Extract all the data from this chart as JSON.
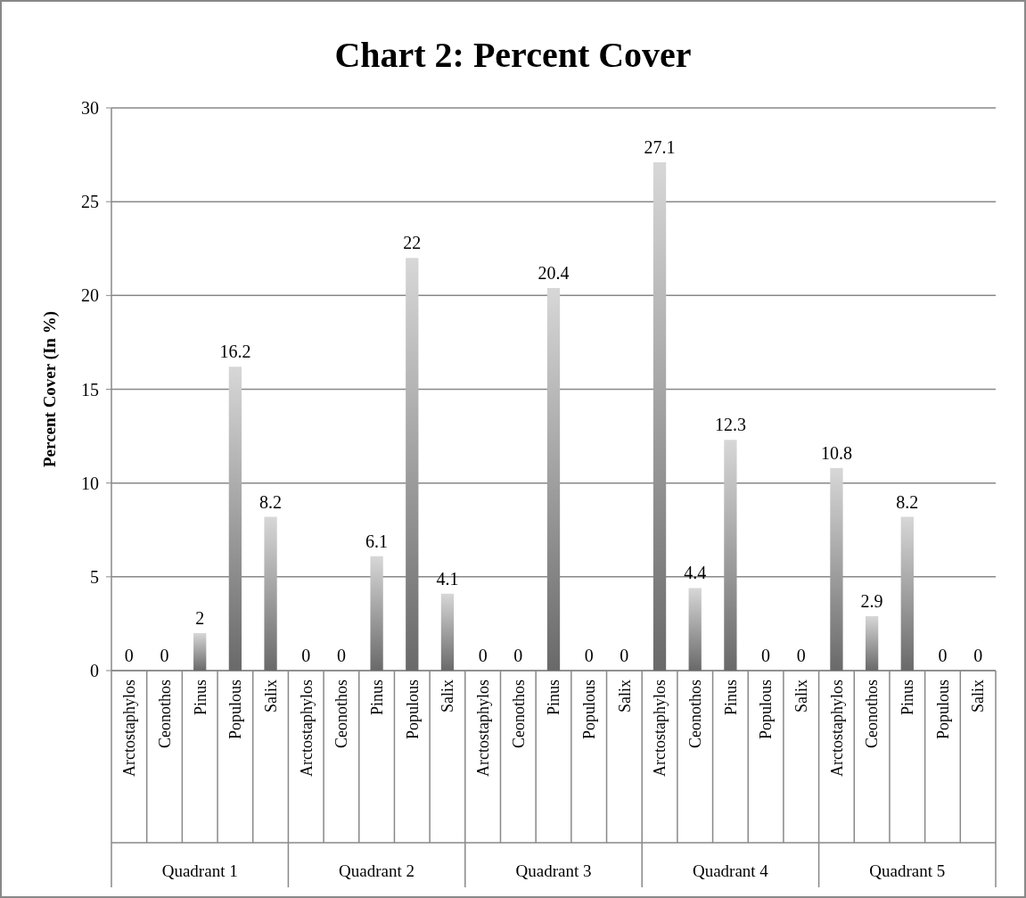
{
  "chart_data": {
    "type": "bar",
    "title": "Chart 2: Percent Cover",
    "ylabel": "Percent Cover (In %)",
    "categories": [
      "Arctostaphylos",
      "Ceonothos",
      "Pinus",
      "Populous",
      "Salix",
      "Arctostaphylos",
      "Ceonothos",
      "Pinus",
      "Populous",
      "Salix",
      "Arctostaphylos",
      "Ceonothos",
      "Pinus",
      "Populous",
      "Salix",
      "Arctostaphylos",
      "Ceonothos",
      "Pinus",
      "Populous",
      "Salix",
      "Arctostaphylos",
      "Ceonothos",
      "Pinus",
      "Populous",
      "Salix"
    ],
    "values": [
      0,
      0,
      2,
      16.2,
      8.2,
      0,
      0,
      6.1,
      22,
      4.1,
      0,
      0,
      20.4,
      0,
      0,
      27.1,
      4.4,
      12.3,
      0,
      0,
      10.8,
      2.9,
      8.2,
      0,
      0
    ],
    "color": "#8c8c8c",
    "annotations": [
      "Quadrant 1",
      "Quadrant 2",
      "Quadrant 3",
      "Quadrant 4",
      "Quadrant 5"
    ],
    "ylim": [
      0,
      30
    ],
    "yticks": [
      0,
      5,
      10,
      15,
      20,
      25,
      30
    ],
    "grid": "y",
    "data_labels": true
  }
}
